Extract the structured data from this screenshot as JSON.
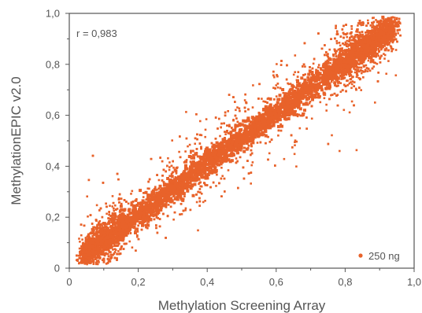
{
  "chart_data": {
    "type": "scatter",
    "xlabel": "Methylation Screening Array",
    "ylabel": "MethylationEPIC v2.0",
    "xlim": [
      0,
      1
    ],
    "ylim": [
      0,
      1
    ],
    "x_tick_labels": [
      "0",
      "0,2",
      "0,4",
      "0,6",
      "0,8",
      "1,0"
    ],
    "y_tick_labels": [
      "0",
      "0,2",
      "0,4",
      "0,6",
      "0,8",
      "1,0"
    ],
    "tick_values": [
      0,
      0.2,
      0.4,
      0.6,
      0.8,
      1.0
    ],
    "annotation": "r = 0,983",
    "correlation_r": 0.983,
    "grid": false,
    "legend_position": "bottom-right",
    "series": [
      {
        "name": "250 ng",
        "color": "#E8622A",
        "description_points": [
          {
            "x": 0.05,
            "y": 0.03
          },
          {
            "x": 0.2,
            "y": 0.18
          },
          {
            "x": 0.4,
            "y": 0.38
          },
          {
            "x": 0.6,
            "y": 0.6
          },
          {
            "x": 0.8,
            "y": 0.82
          },
          {
            "x": 0.95,
            "y": 0.97
          }
        ]
      }
    ]
  }
}
